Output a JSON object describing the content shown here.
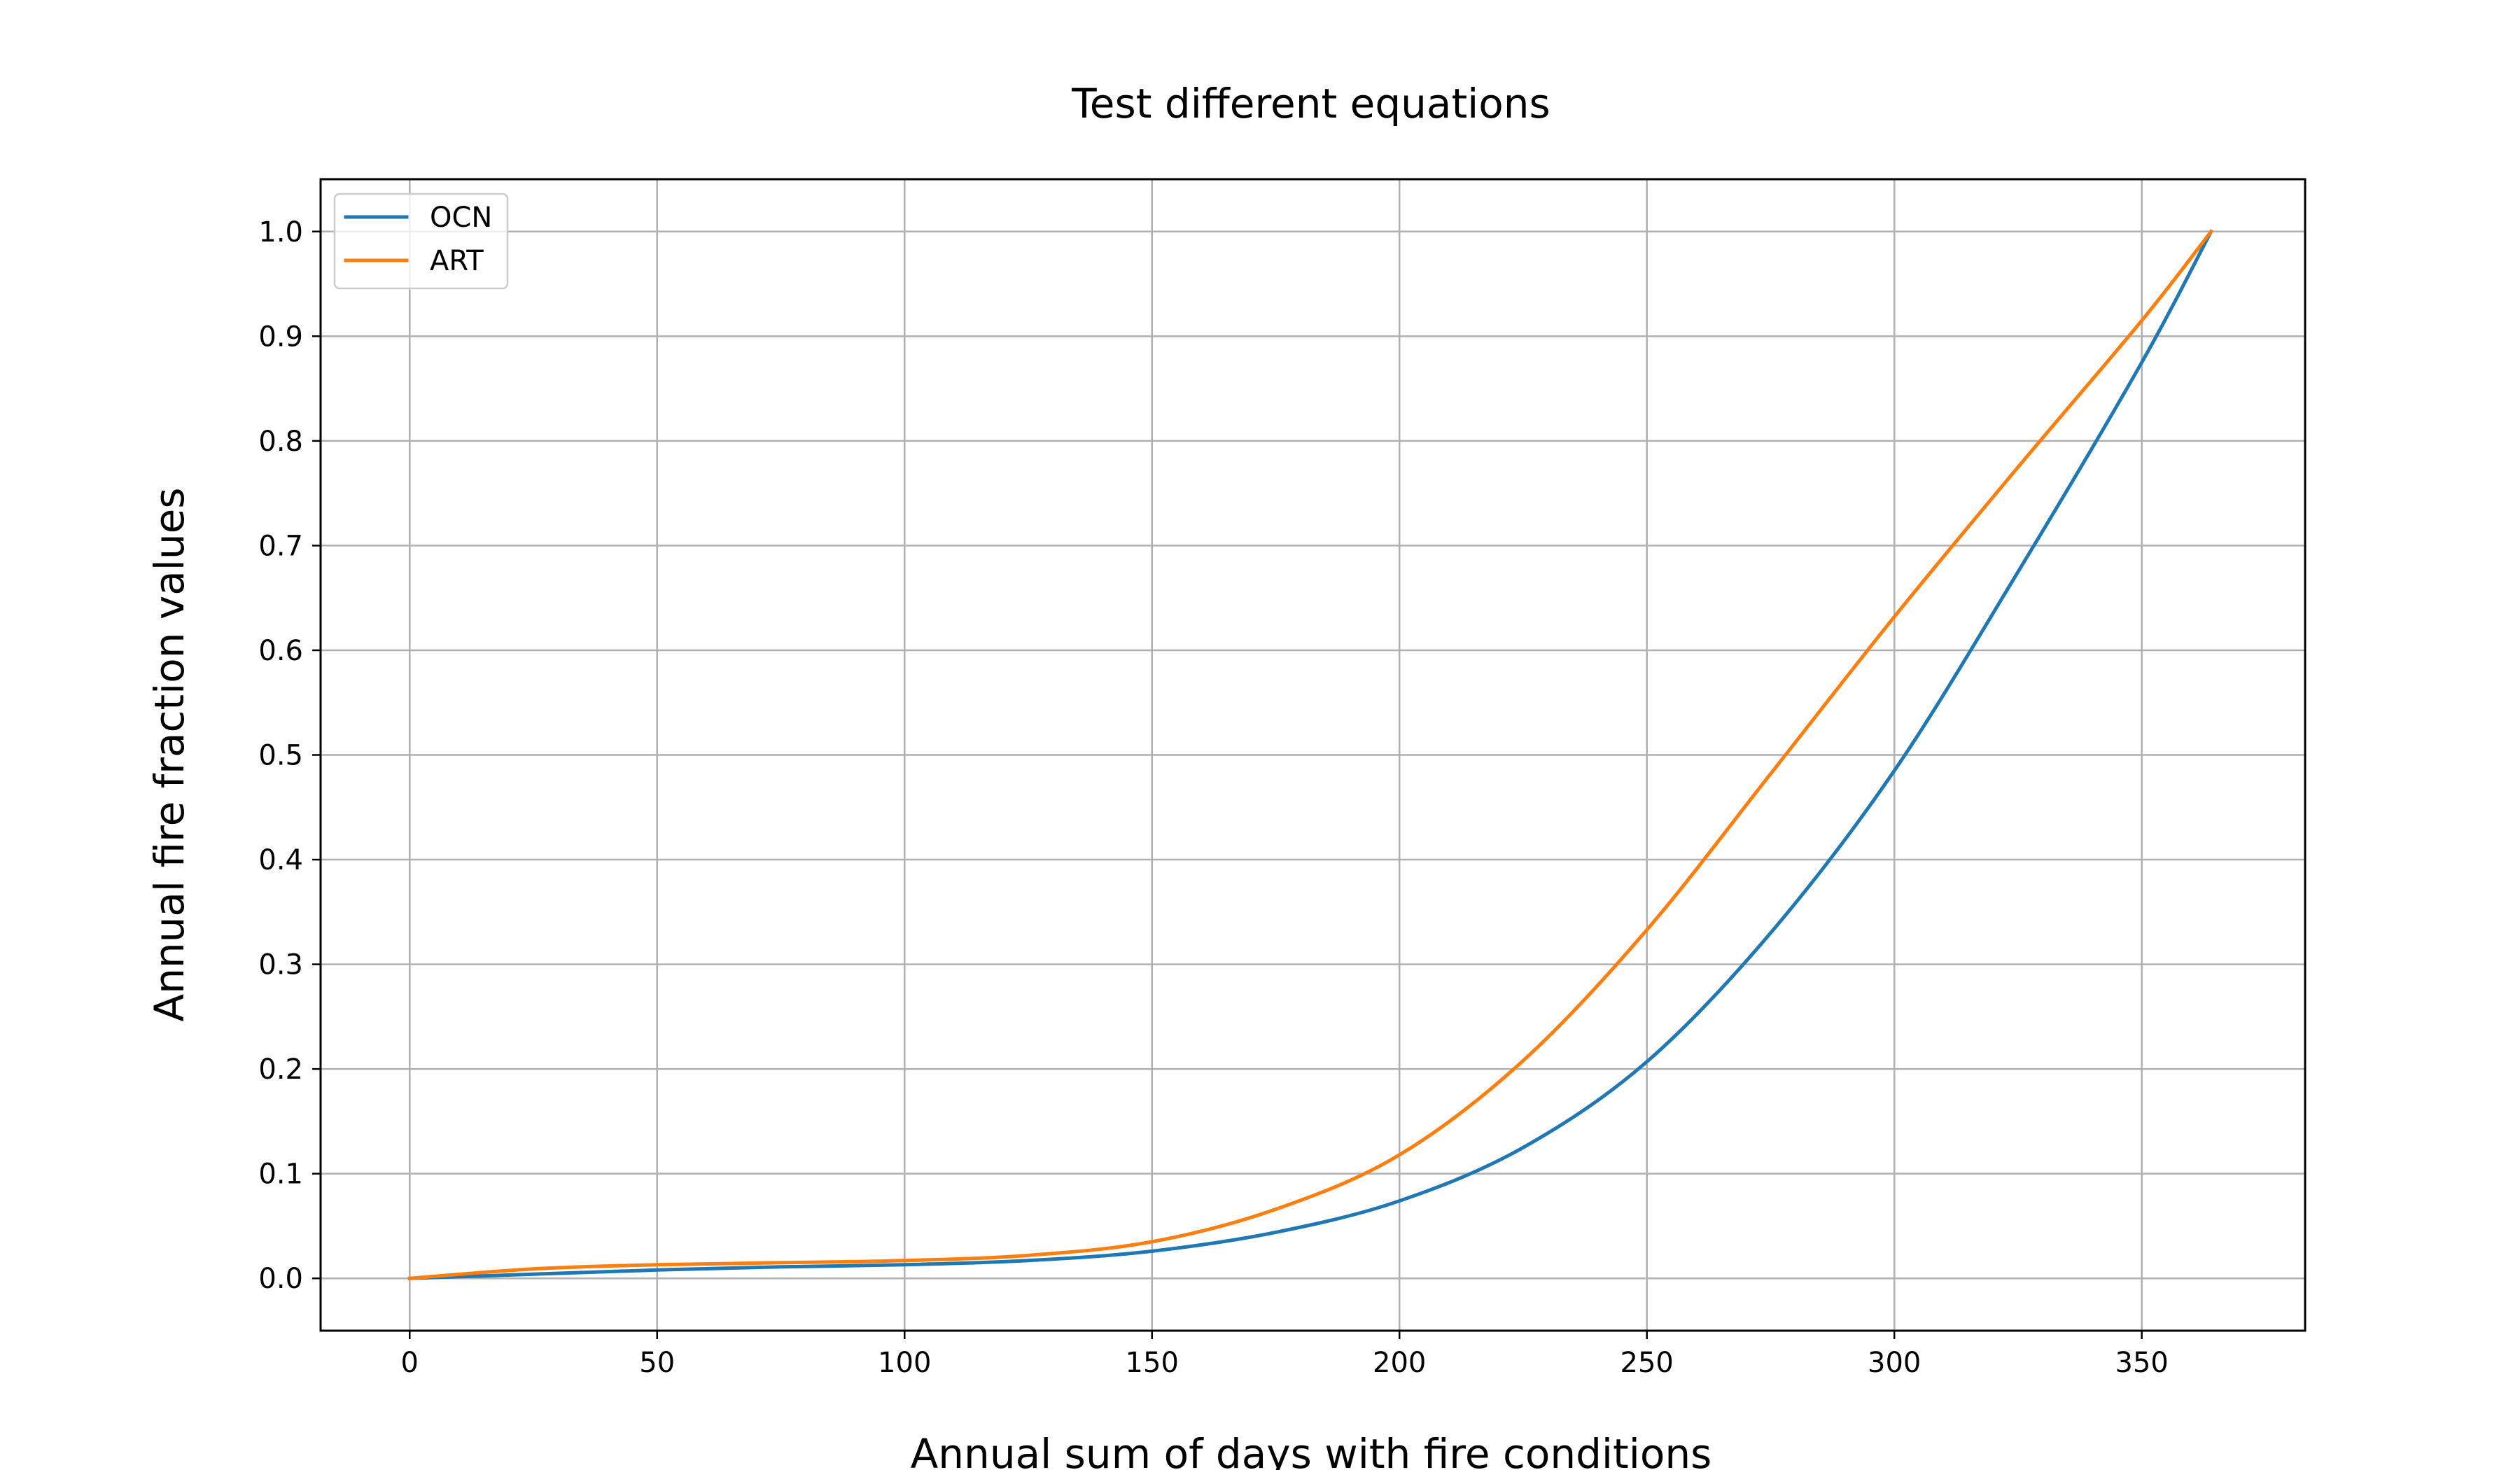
{
  "chart_data": {
    "type": "line",
    "title": "Test different equations",
    "xlabel": "Annual sum of days with fire conditions",
    "ylabel": "Annual fire fraction values",
    "xlim": [
      -18,
      383
    ],
    "ylim": [
      -0.05,
      1.05
    ],
    "x_ticks": [
      0,
      50,
      100,
      150,
      200,
      250,
      300,
      350
    ],
    "x_tick_labels": [
      "0",
      "50",
      "100",
      "150",
      "200",
      "250",
      "300",
      "350"
    ],
    "y_ticks": [
      0.0,
      0.1,
      0.2,
      0.3,
      0.4,
      0.5,
      0.6,
      0.7,
      0.8,
      0.9,
      1.0
    ],
    "y_tick_labels": [
      "0.0",
      "0.1",
      "0.2",
      "0.3",
      "0.4",
      "0.5",
      "0.6",
      "0.7",
      "0.8",
      "0.9",
      "1.0"
    ],
    "grid": true,
    "legend_position": "top-left",
    "x": [
      0,
      25,
      50,
      75,
      100,
      125,
      150,
      175,
      200,
      225,
      250,
      275,
      300,
      325,
      350,
      364
    ],
    "series": [
      {
        "name": "OCN",
        "color": "#1f77b4",
        "values": [
          0.0,
          0.004,
          0.008,
          0.011,
          0.013,
          0.017,
          0.026,
          0.044,
          0.074,
          0.125,
          0.207,
          0.33,
          0.485,
          0.675,
          0.875,
          1.0
        ]
      },
      {
        "name": "ART",
        "color": "#ff7f0e",
        "values": [
          0.0,
          0.009,
          0.013,
          0.015,
          0.017,
          0.022,
          0.035,
          0.066,
          0.118,
          0.208,
          0.333,
          0.482,
          0.632,
          0.775,
          0.915,
          1.0
        ]
      }
    ]
  }
}
